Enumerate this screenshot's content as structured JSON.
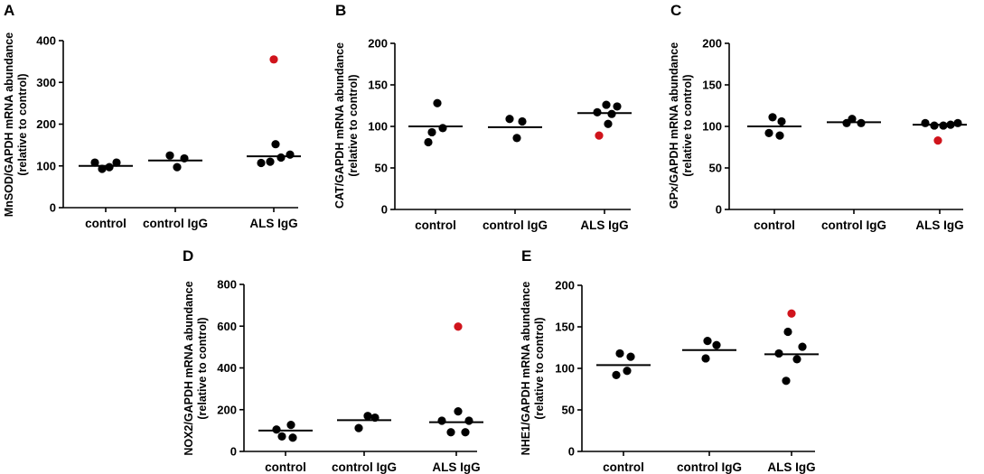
{
  "colors": {
    "normal_point": "#000000",
    "highlight_point": "#d0141c",
    "axis": "#000000"
  },
  "chart_data": [
    {
      "panel": "A",
      "type": "scatter",
      "ylabel_line1": "MnSOD/GAPDH mRNA abundance",
      "ylabel_line2": "(relative to control)",
      "ylim": [
        0,
        400
      ],
      "yticks": [
        "0",
        "100",
        "200",
        "300",
        "400"
      ],
      "categories": [
        "control",
        "control IgG",
        "ALS IgG"
      ],
      "groups": [
        {
          "name": "control",
          "mean": 100,
          "points": [
            {
              "v": 108,
              "o": -12
            },
            {
              "v": 93,
              "o": -4
            },
            {
              "v": 97,
              "o": 4
            },
            {
              "v": 108,
              "o": 12
            }
          ]
        },
        {
          "name": "control IgG",
          "mean": 113,
          "points": [
            {
              "v": 125,
              "o": -6
            },
            {
              "v": 97,
              "o": 2
            },
            {
              "v": 118,
              "o": 10
            }
          ]
        },
        {
          "name": "ALS IgG",
          "mean": 123,
          "points": [
            {
              "v": 355,
              "o": 0,
              "highlight": true
            },
            {
              "v": 152,
              "o": 2
            },
            {
              "v": 107,
              "o": -14
            },
            {
              "v": 110,
              "o": -4
            },
            {
              "v": 120,
              "o": 8
            },
            {
              "v": 127,
              "o": 18
            }
          ]
        }
      ]
    },
    {
      "panel": "B",
      "type": "scatter",
      "ylabel_line1": "CAT/GAPDH mRNA abundance",
      "ylabel_line2": "(relative to control)",
      "ylim": [
        0,
        200
      ],
      "yticks": [
        "0",
        "50",
        "100",
        "150",
        "200"
      ],
      "categories": [
        "control",
        "control IgG",
        "ALS IgG"
      ],
      "groups": [
        {
          "name": "control",
          "mean": 100,
          "points": [
            {
              "v": 128,
              "o": 2
            },
            {
              "v": 98,
              "o": 8
            },
            {
              "v": 93,
              "o": -4
            },
            {
              "v": 81,
              "o": -8
            }
          ]
        },
        {
          "name": "control IgG",
          "mean": 99,
          "points": [
            {
              "v": 109,
              "o": -6
            },
            {
              "v": 106,
              "o": 8
            },
            {
              "v": 86,
              "o": 2
            }
          ]
        },
        {
          "name": "ALS IgG",
          "mean": 116,
          "points": [
            {
              "v": 126,
              "o": 2
            },
            {
              "v": 124,
              "o": 14
            },
            {
              "v": 117,
              "o": -8
            },
            {
              "v": 115,
              "o": 8
            },
            {
              "v": 103,
              "o": 4
            },
            {
              "v": 89,
              "o": -6,
              "highlight": true
            }
          ]
        }
      ]
    },
    {
      "panel": "C",
      "type": "scatter",
      "ylabel_line1": "GPx/GAPDH mRNA abundance",
      "ylabel_line2": "(relative to control)",
      "ylim": [
        0,
        200
      ],
      "yticks": [
        "0",
        "50",
        "100",
        "150",
        "200"
      ],
      "categories": [
        "control",
        "control IgG",
        "ALS IgG"
      ],
      "groups": [
        {
          "name": "control",
          "mean": 100,
          "points": [
            {
              "v": 111,
              "o": -2
            },
            {
              "v": 106,
              "o": 8
            },
            {
              "v": 92,
              "o": -6
            },
            {
              "v": 89,
              "o": 6
            }
          ]
        },
        {
          "name": "control IgG",
          "mean": 105,
          "points": [
            {
              "v": 109,
              "o": -2
            },
            {
              "v": 104,
              "o": -8
            },
            {
              "v": 104,
              "o": 8
            }
          ]
        },
        {
          "name": "ALS IgG",
          "mean": 102,
          "points": [
            {
              "v": 104,
              "o": -16
            },
            {
              "v": 101,
              "o": -6
            },
            {
              "v": 101,
              "o": 4
            },
            {
              "v": 102,
              "o": 12
            },
            {
              "v": 104,
              "o": 20
            },
            {
              "v": 83,
              "o": -2,
              "highlight": true
            }
          ]
        }
      ]
    },
    {
      "panel": "D",
      "type": "scatter",
      "ylabel_line1": "NOX2/GAPDH mRNA abundance",
      "ylabel_line2": "(relative to control)",
      "ylim": [
        0,
        800
      ],
      "yticks": [
        "0",
        "200",
        "400",
        "600",
        "800"
      ],
      "categories": [
        "control",
        "control IgG",
        "ALS IgG"
      ],
      "groups": [
        {
          "name": "control",
          "mean": 100,
          "points": [
            {
              "v": 127,
              "o": 6
            },
            {
              "v": 105,
              "o": -10
            },
            {
              "v": 72,
              "o": -4
            },
            {
              "v": 66,
              "o": 8
            }
          ]
        },
        {
          "name": "control IgG",
          "mean": 150,
          "points": [
            {
              "v": 170,
              "o": 4
            },
            {
              "v": 162,
              "o": 12
            },
            {
              "v": 112,
              "o": -6
            }
          ]
        },
        {
          "name": "ALS IgG",
          "mean": 140,
          "points": [
            {
              "v": 598,
              "o": 2,
              "highlight": true
            },
            {
              "v": 192,
              "o": 2
            },
            {
              "v": 147,
              "o": -16
            },
            {
              "v": 147,
              "o": 14
            },
            {
              "v": 92,
              "o": -6
            },
            {
              "v": 92,
              "o": 10
            }
          ]
        }
      ]
    },
    {
      "panel": "E",
      "type": "scatter",
      "ylabel_line1": "NHE1/GAPDH mRNA abundance",
      "ylabel_line2": "(relative to control)",
      "ylim": [
        0,
        200
      ],
      "yticks": [
        "0",
        "50",
        "100",
        "150",
        "200"
      ],
      "categories": [
        "control",
        "control IgG",
        "ALS IgG"
      ],
      "groups": [
        {
          "name": "control",
          "mean": 104,
          "points": [
            {
              "v": 118,
              "o": -4
            },
            {
              "v": 114,
              "o": 8
            },
            {
              "v": 97,
              "o": 4
            },
            {
              "v": 92,
              "o": -8
            }
          ]
        },
        {
          "name": "control IgG",
          "mean": 122,
          "points": [
            {
              "v": 133,
              "o": -2
            },
            {
              "v": 128,
              "o": 8
            },
            {
              "v": 112,
              "o": -4
            }
          ]
        },
        {
          "name": "ALS IgG",
          "mean": 117,
          "points": [
            {
              "v": 166,
              "o": 0,
              "highlight": true
            },
            {
              "v": 144,
              "o": -4
            },
            {
              "v": 126,
              "o": 12
            },
            {
              "v": 118,
              "o": -14
            },
            {
              "v": 111,
              "o": 6
            },
            {
              "v": 85,
              "o": -6
            }
          ]
        }
      ]
    }
  ]
}
